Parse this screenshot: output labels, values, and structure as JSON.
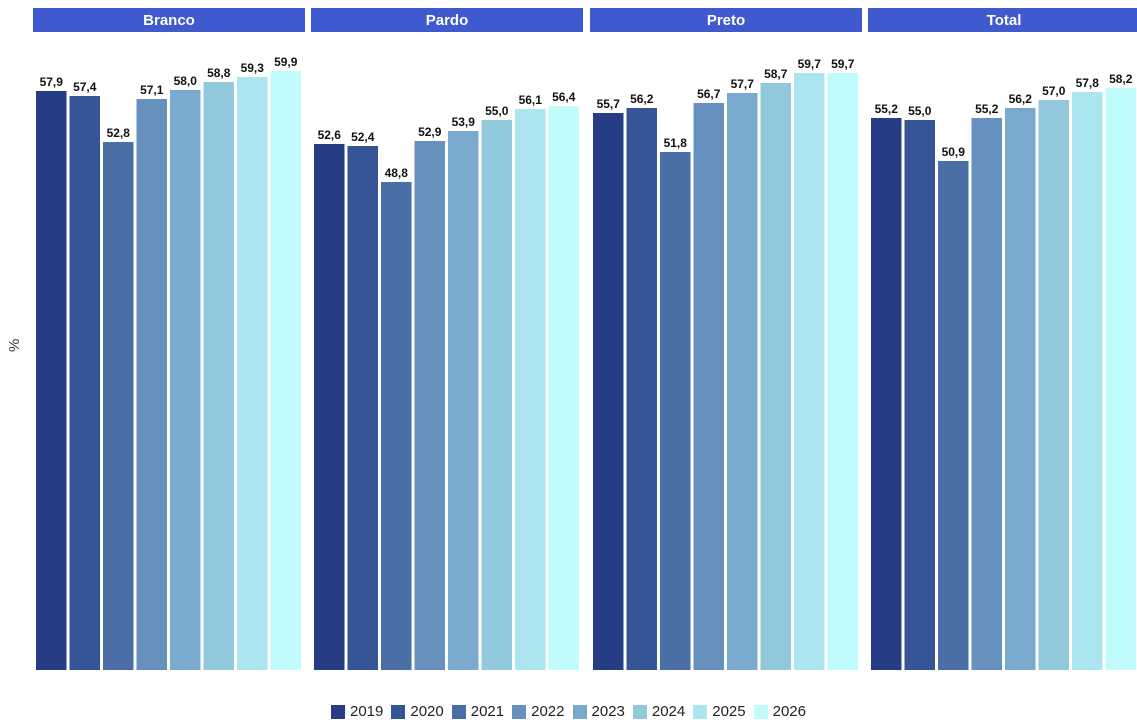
{
  "chart_data": {
    "type": "bar",
    "ylabel": "%",
    "ylim": [
      0,
      60
    ],
    "grid": false,
    "legend_position": "bottom",
    "panels": [
      {
        "title": "Branco",
        "values": [
          57.9,
          57.4,
          52.8,
          57.1,
          58.0,
          58.8,
          59.3,
          59.9
        ],
        "labels": [
          "57,9",
          "57,4",
          "52,8",
          "57,1",
          "58,0",
          "58,8",
          "59,3",
          "59,9"
        ]
      },
      {
        "title": "Pardo",
        "values": [
          52.6,
          52.4,
          48.8,
          52.9,
          53.9,
          55.0,
          56.1,
          56.4
        ],
        "labels": [
          "52,6",
          "52,4",
          "48,8",
          "52,9",
          "53,9",
          "55,0",
          "56,1",
          "56,4"
        ]
      },
      {
        "title": "Preto",
        "values": [
          55.7,
          56.2,
          51.8,
          56.7,
          57.7,
          58.7,
          59.7,
          59.7
        ],
        "labels": [
          "55,7",
          "56,2",
          "51,8",
          "56,7",
          "57,7",
          "58,7",
          "59,7",
          "59,7"
        ]
      },
      {
        "title": "Total",
        "values": [
          55.2,
          55.0,
          50.9,
          55.2,
          56.2,
          57.0,
          57.8,
          58.2
        ],
        "labels": [
          "55,2",
          "55,0",
          "50,9",
          "55,2",
          "56,2",
          "57,0",
          "57,8",
          "58,2"
        ]
      }
    ],
    "series": [
      {
        "name": "2019",
        "color": "#263c84"
      },
      {
        "name": "2020",
        "color": "#355596"
      },
      {
        "name": "2021",
        "color": "#4a6fa6"
      },
      {
        "name": "2022",
        "color": "#6690bd"
      },
      {
        "name": "2023",
        "color": "#79a9cc"
      },
      {
        "name": "2024",
        "color": "#92c8dc"
      },
      {
        "name": "2025",
        "color": "#abe5ef"
      },
      {
        "name": "2026",
        "color": "#c1fcfd"
      }
    ],
    "strip_color": "#3f59cf",
    "strip_text_color": "#ffffff"
  }
}
